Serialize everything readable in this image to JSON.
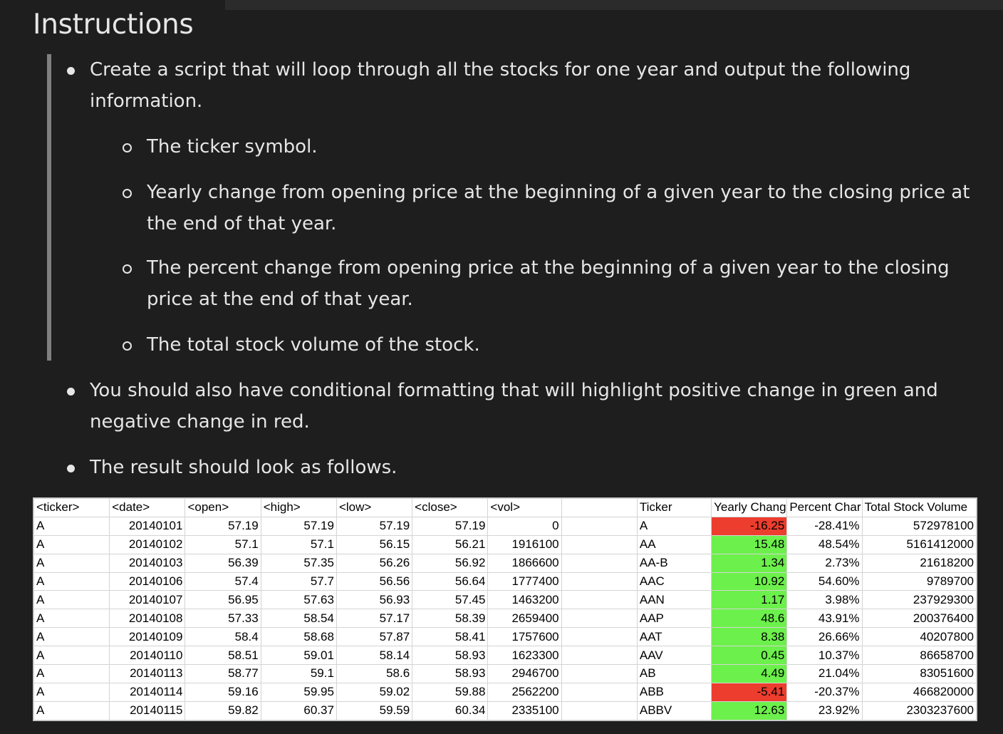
{
  "heading": "Instructions",
  "bullets": {
    "b1": {
      "line1": "Create a script that will loop through all the stocks for one year and output the following",
      "line2": "information."
    },
    "sub1": "The ticker symbol.",
    "sub2": {
      "line1": "Yearly change from opening price at the beginning of a given year to the closing price at",
      "line2": "the end of that year."
    },
    "sub3": {
      "line1": "The percent change from opening price at the beginning of a given year to the closing",
      "line2": "price at the end of that year."
    },
    "sub4": "The total stock volume of the stock.",
    "b2": {
      "line1": "You should also have conditional formatting that will highlight positive change in green and",
      "line2": "negative change in red."
    },
    "b3": "The result should look as follows."
  },
  "colors": {
    "positive": "#6cf04b",
    "negative": "#ec3d2e"
  },
  "sheet": {
    "headers": [
      "<ticker>",
      "<date>",
      "<open>",
      "<high>",
      "<low>",
      "<close>",
      "<vol>",
      "",
      "Ticker",
      "Yearly Chang",
      "Percent Char",
      "Total Stock Volume"
    ],
    "raw_rows": [
      [
        "A",
        "20140101",
        "57.19",
        "57.19",
        "57.19",
        "57.19",
        "0"
      ],
      [
        "A",
        "20140102",
        "57.1",
        "57.1",
        "56.15",
        "56.21",
        "1916100"
      ],
      [
        "A",
        "20140103",
        "56.39",
        "57.35",
        "56.26",
        "56.92",
        "1866600"
      ],
      [
        "A",
        "20140106",
        "57.4",
        "57.7",
        "56.56",
        "56.64",
        "1777400"
      ],
      [
        "A",
        "20140107",
        "56.95",
        "57.63",
        "56.93",
        "57.45",
        "1463200"
      ],
      [
        "A",
        "20140108",
        "57.33",
        "58.54",
        "57.17",
        "58.39",
        "2659400"
      ],
      [
        "A",
        "20140109",
        "58.4",
        "58.68",
        "57.87",
        "58.41",
        "1757600"
      ],
      [
        "A",
        "20140110",
        "58.51",
        "59.01",
        "58.14",
        "58.93",
        "1623300"
      ],
      [
        "A",
        "20140113",
        "58.77",
        "59.1",
        "58.6",
        "58.93",
        "2946700"
      ],
      [
        "A",
        "20140114",
        "59.16",
        "59.95",
        "59.02",
        "59.88",
        "2562200"
      ],
      [
        "A",
        "20140115",
        "59.82",
        "60.37",
        "59.59",
        "60.34",
        "2335100"
      ]
    ],
    "summary_rows": [
      {
        "ticker": "A",
        "change": "-16.25",
        "percent": "-28.41%",
        "volume": "572978100",
        "sign": "neg"
      },
      {
        "ticker": "AA",
        "change": "15.48",
        "percent": "48.54%",
        "volume": "5161412000",
        "sign": "pos"
      },
      {
        "ticker": "AA-B",
        "change": "1.34",
        "percent": "2.73%",
        "volume": "21618200",
        "sign": "pos"
      },
      {
        "ticker": "AAC",
        "change": "10.92",
        "percent": "54.60%",
        "volume": "9789700",
        "sign": "pos"
      },
      {
        "ticker": "AAN",
        "change": "1.17",
        "percent": "3.98%",
        "volume": "237929300",
        "sign": "pos"
      },
      {
        "ticker": "AAP",
        "change": "48.6",
        "percent": "43.91%",
        "volume": "200376400",
        "sign": "pos"
      },
      {
        "ticker": "AAT",
        "change": "8.38",
        "percent": "26.66%",
        "volume": "40207800",
        "sign": "pos"
      },
      {
        "ticker": "AAV",
        "change": "0.45",
        "percent": "10.37%",
        "volume": "86658700",
        "sign": "pos"
      },
      {
        "ticker": "AB",
        "change": "4.49",
        "percent": "21.04%",
        "volume": "83051600",
        "sign": "pos"
      },
      {
        "ticker": "ABB",
        "change": "-5.41",
        "percent": "-20.37%",
        "volume": "466820000",
        "sign": "neg"
      },
      {
        "ticker": "ABBV",
        "change": "12.63",
        "percent": "23.92%",
        "volume": "2303237600",
        "sign": "pos"
      }
    ]
  }
}
